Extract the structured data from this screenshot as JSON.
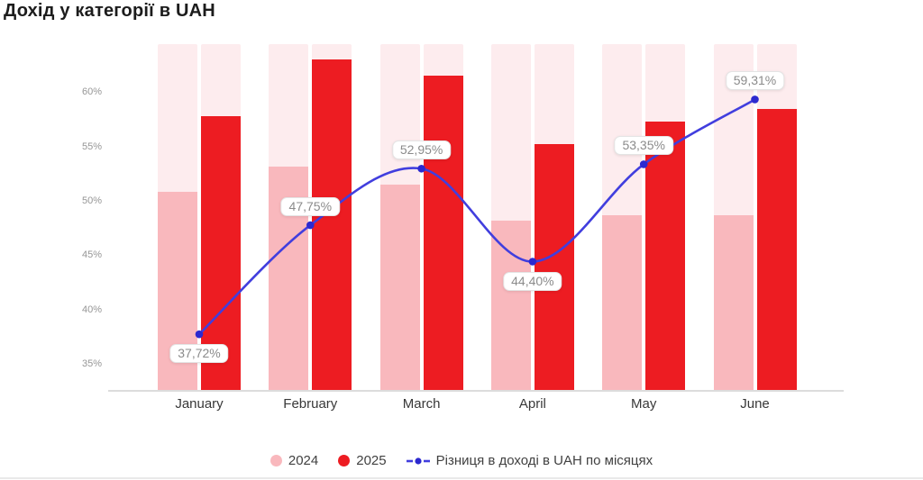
{
  "title": "Дохід у категорії в UAH",
  "chart_data": {
    "type": "combo bar+line",
    "categories": [
      "January",
      "February",
      "March",
      "April",
      "May",
      "June"
    ],
    "series": [
      {
        "name": "2024",
        "type": "bar",
        "color": "#f9b8bd",
        "values": [
          50.8,
          53.1,
          51.5,
          48.2,
          48.7,
          48.7
        ]
      },
      {
        "name": "2025",
        "type": "bar",
        "color": "#ed1c22",
        "values": [
          57.8,
          63.0,
          61.5,
          55.2,
          57.3,
          58.4
        ]
      },
      {
        "name": "Різниця в доході в UAH по місяцях",
        "type": "line",
        "color": "#413ede",
        "point_color": "#2c29cf",
        "values": [
          37.72,
          47.75,
          52.95,
          44.4,
          53.35,
          59.31
        ],
        "point_labels": [
          "37,72%",
          "47,75%",
          "52,95%",
          "44,40%",
          "53,35%",
          "59,31%"
        ],
        "label_positions": [
          "below",
          "above",
          "above",
          "below",
          "above",
          "above"
        ]
      }
    ],
    "yticks": [
      35,
      40,
      45,
      50,
      55,
      60
    ],
    "ytick_labels": [
      "35%",
      "40%",
      "45%",
      "50%",
      "55%",
      "60%"
    ],
    "ylim": [
      32.6,
      64.4
    ],
    "ylabel": "",
    "xlabel": "",
    "grid": false,
    "track_color": "#fdecee",
    "legend_position": "bottom"
  },
  "colors": {
    "title_text": "#1c1c1c",
    "tick_text": "#969696",
    "month_text": "#383838",
    "point_label_text": "#8b8b8b",
    "axis_line": "#dcdcdc",
    "bottom_rule": "#e9e9e9"
  }
}
